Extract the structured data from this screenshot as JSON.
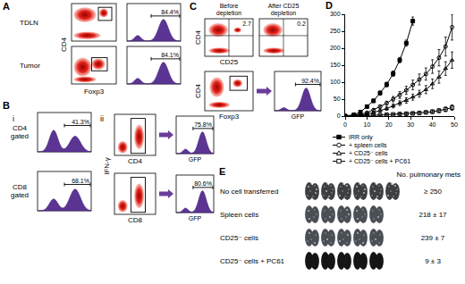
{
  "chart_data": {
    "type": "line",
    "xlim": [
      0,
      50
    ],
    "xticks": [
      0,
      10,
      20,
      30,
      40,
      50
    ],
    "ylim": [
      0,
      300
    ],
    "yticks": [
      0,
      50,
      100,
      150,
      200,
      250,
      300
    ],
    "grid": false,
    "legend": "bottom",
    "series": [
      {
        "name": "IRR only",
        "color": "#000000",
        "marker": "square",
        "x": [
          0,
          4,
          7,
          10,
          13,
          16,
          19,
          22,
          25,
          28,
          31
        ],
        "values": [
          0,
          4,
          12,
          28,
          45,
          68,
          93,
          125,
          165,
          215,
          280
        ],
        "error": [
          0,
          2,
          3,
          4,
          5,
          6,
          7,
          8,
          8,
          9,
          12
        ]
      },
      {
        "name": "+ spleen cells",
        "color": "#000000",
        "marker": "circle-open",
        "x": [
          0,
          4,
          7,
          10,
          13,
          16,
          19,
          22,
          25,
          28,
          31,
          34,
          37,
          40,
          43,
          46,
          49
        ],
        "values": [
          0,
          2,
          5,
          10,
          18,
          28,
          38,
          50,
          62,
          76,
          92,
          108,
          124,
          146,
          172,
          205,
          262
        ],
        "error": [
          0,
          1,
          2,
          3,
          4,
          5,
          6,
          8,
          10,
          12,
          14,
          16,
          18,
          20,
          24,
          28,
          38
        ]
      },
      {
        "name": "+ CD25⁻ cells",
        "color": "#000000",
        "marker": "triangle-up-open",
        "x": [
          0,
          4,
          7,
          10,
          13,
          16,
          19,
          22,
          25,
          28,
          31,
          34,
          37,
          40,
          43,
          46,
          49
        ],
        "values": [
          0,
          1,
          3,
          6,
          10,
          16,
          22,
          30,
          38,
          46,
          56,
          66,
          78,
          95,
          115,
          140,
          165
        ],
        "error": [
          0,
          1,
          1,
          2,
          3,
          4,
          5,
          6,
          7,
          8,
          9,
          10,
          12,
          14,
          18,
          20,
          24
        ]
      },
      {
        "name": "+ CD25⁻ cells + PC61",
        "color": "#000000",
        "marker": "square-open",
        "x": [
          0,
          4,
          7,
          10,
          13,
          16,
          19,
          22,
          25,
          28,
          31,
          34,
          37,
          40,
          43,
          46,
          49
        ],
        "values": [
          0,
          0,
          1,
          2,
          2,
          3,
          4,
          5,
          6,
          7,
          8,
          9,
          11,
          13,
          16,
          20,
          25
        ],
        "error": [
          0,
          0,
          1,
          1,
          1,
          2,
          2,
          2,
          3,
          3,
          3,
          4,
          4,
          5,
          6,
          7,
          8
        ]
      }
    ]
  },
  "panels": {
    "A": {
      "letter": "A",
      "y_label": "CD4",
      "x_label": "Foxp3",
      "rows": [
        {
          "label": "TDLN",
          "gate": "84.4%"
        },
        {
          "label": "Tumor",
          "gate": "84.1%"
        }
      ]
    },
    "B": {
      "letter": "B",
      "i": {
        "label": "i",
        "histograms": [
          {
            "label": "CD4 gated",
            "gate": "41.3%"
          },
          {
            "label": "CD8 gated",
            "gate": "68.1%"
          }
        ]
      },
      "ii": {
        "label": "ii",
        "y_label": "IFN-γ",
        "rows": [
          {
            "x_label": "CD4",
            "gate": "75.8%",
            "histogram_label": "GFP"
          },
          {
            "x_label": "CD8",
            "gate": "80.6%",
            "histogram_label": "GFP"
          }
        ]
      }
    },
    "C": {
      "letter": "C",
      "y_label": "CD4",
      "x_label": "CD25",
      "dot_plots": [
        {
          "title": "Before depletion",
          "quadrant": "2.7"
        },
        {
          "title": "After CD25 depletion",
          "quadrant": "0.2"
        }
      ],
      "foxp3": {
        "y_label": "CD4",
        "x_label": "Foxp3",
        "gate": "92.4%",
        "histogram_label": "GFP"
      }
    },
    "D": {
      "letter": "D"
    },
    "E": {
      "letter": "E",
      "header": "No. pulmonary mets",
      "rows": [
        {
          "label": "No cell transferred",
          "value": "≥ 250"
        },
        {
          "label": "Spleen cells",
          "value": "218 ± 17"
        },
        {
          "label": "CD25⁻ cells",
          "value": "239 ± 7"
        },
        {
          "label": "CD25⁻ cells + PC61",
          "value": "9 ± 3"
        }
      ]
    }
  }
}
